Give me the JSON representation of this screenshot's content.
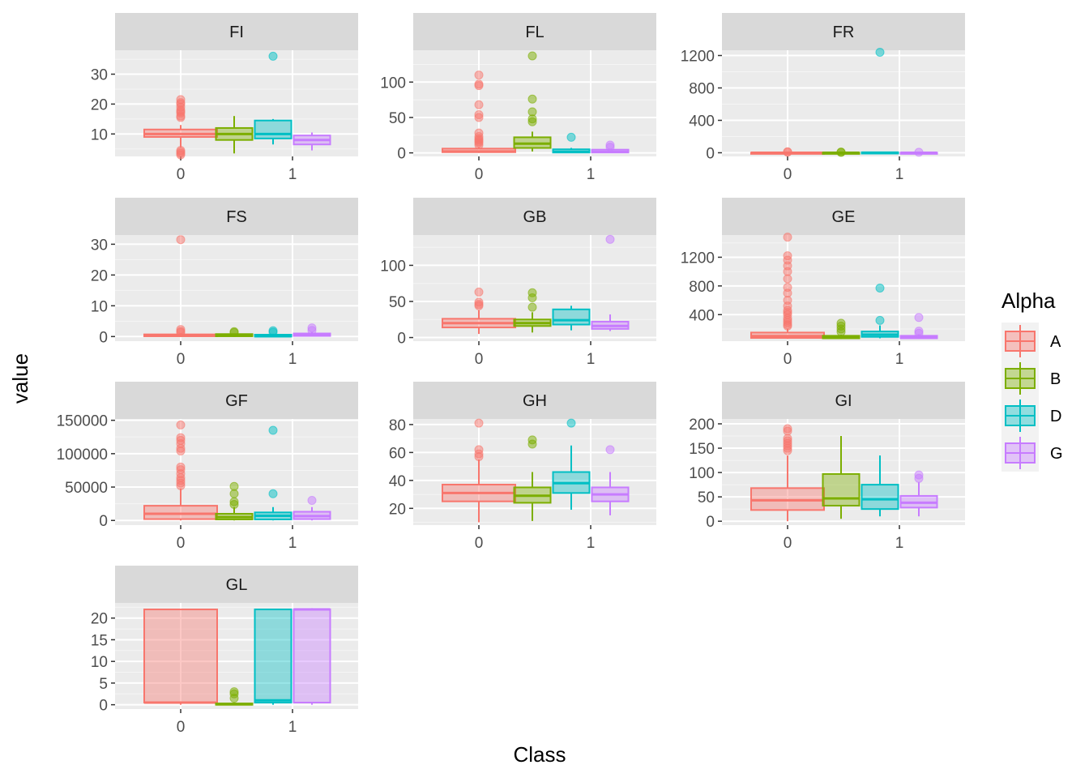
{
  "chart_data": {
    "type": "box",
    "xlabel": "Class",
    "ylabel": "value",
    "legend": {
      "title": "Alpha",
      "position": "right",
      "entries": [
        {
          "name": "A",
          "color": "#F8766D"
        },
        {
          "name": "B",
          "color": "#7CAE00"
        },
        {
          "name": "D",
          "color": "#00BFC4"
        },
        {
          "name": "G",
          "color": "#C77CFF"
        }
      ]
    },
    "grid": true,
    "x_categories": [
      "0",
      "1"
    ],
    "panels": [
      {
        "title": "FI",
        "ylim": [
          2.5,
          38
        ],
        "yticks": [
          10,
          20,
          30
        ],
        "ytick_labels": [
          "10",
          "20",
          "30"
        ],
        "boxes": [
          {
            "class": "0",
            "group": "A",
            "lower": 5.5,
            "q1": 9,
            "median": 10,
            "q3": 11.5,
            "upper": 13,
            "outliers": [
              3,
              3.5,
              4,
              4.5,
              15.5,
              16,
              17,
              17.5,
              18,
              19,
              20,
              20.5,
              21.5
            ]
          },
          {
            "class": "1",
            "group": "B",
            "lower": 3.5,
            "q1": 8,
            "median": 10,
            "q3": 12,
            "upper": 16,
            "outliers": []
          },
          {
            "class": "1",
            "group": "D",
            "lower": 6.5,
            "q1": 8.5,
            "median": 10,
            "q3": 14.5,
            "upper": 15,
            "outliers": [
              36
            ]
          },
          {
            "class": "1",
            "group": "G",
            "lower": 4.5,
            "q1": 6.5,
            "median": 8,
            "q3": 9.5,
            "upper": 10.5,
            "outliers": []
          }
        ]
      },
      {
        "title": "FL",
        "ylim": [
          -5,
          145
        ],
        "yticks": [
          0,
          50,
          100
        ],
        "ytick_labels": [
          "0",
          "50",
          "100"
        ],
        "boxes": [
          {
            "class": "0",
            "group": "A",
            "lower": 0,
            "q1": 1,
            "median": 2,
            "q3": 6,
            "upper": 8,
            "outliers": [
              11,
              14,
              16,
              18,
              20,
              23,
              28,
              50,
              54,
              68,
              95,
              97,
              110
            ]
          },
          {
            "class": "1",
            "group": "B",
            "lower": 2,
            "q1": 7,
            "median": 13,
            "q3": 22,
            "upper": 30,
            "outliers": [
              44,
              48,
              58,
              76,
              137
            ]
          },
          {
            "class": "1",
            "group": "D",
            "lower": 0,
            "q1": 0.5,
            "median": 1.5,
            "q3": 5,
            "upper": 7,
            "outliers": [
              22
            ]
          },
          {
            "class": "1",
            "group": "G",
            "lower": 0,
            "q1": 0.5,
            "median": 1.5,
            "q3": 4.5,
            "upper": 5,
            "outliers": [
              8,
              11
            ]
          }
        ]
      },
      {
        "title": "FR",
        "ylim": [
          -45,
          1265
        ],
        "yticks": [
          0,
          400,
          800,
          1200
        ],
        "ytick_labels": [
          "0",
          "400",
          "800",
          "1200"
        ],
        "boxes": [
          {
            "class": "0",
            "group": "A",
            "lower": 0,
            "q1": 0,
            "median": 0.5,
            "q3": 1,
            "upper": 2,
            "outliers": [
              8,
              12
            ]
          },
          {
            "class": "1",
            "group": "B",
            "lower": 0,
            "q1": 0,
            "median": 0.5,
            "q3": 1,
            "upper": 2,
            "outliers": [
              5,
              9
            ]
          },
          {
            "class": "1",
            "group": "D",
            "lower": 0,
            "q1": 0,
            "median": 1,
            "q3": 5,
            "upper": 8,
            "outliers": [
              1240
            ]
          },
          {
            "class": "1",
            "group": "G",
            "lower": 0,
            "q1": 0,
            "median": 0.5,
            "q3": 1,
            "upper": 2,
            "outliers": [
              6
            ]
          }
        ]
      },
      {
        "title": "FS",
        "ylim": [
          -1.5,
          33
        ],
        "yticks": [
          0,
          10,
          20,
          30
        ],
        "ytick_labels": [
          "0",
          "10",
          "20",
          "30"
        ],
        "boxes": [
          {
            "class": "0",
            "group": "A",
            "lower": 0,
            "q1": 0.1,
            "median": 0.3,
            "q3": 0.7,
            "upper": 1,
            "outliers": [
              1.3,
              1.7,
              2.3,
              31.5
            ]
          },
          {
            "class": "1",
            "group": "B",
            "lower": 0,
            "q1": 0.1,
            "median": 0.3,
            "q3": 0.8,
            "upper": 1,
            "outliers": [
              1.3,
              1.6
            ]
          },
          {
            "class": "1",
            "group": "D",
            "lower": 0,
            "q1": 0,
            "median": 0.1,
            "q3": 0.6,
            "upper": 0.9,
            "outliers": [
              1.4,
              1.9
            ]
          },
          {
            "class": "1",
            "group": "G",
            "lower": 0,
            "q1": 0.2,
            "median": 0.5,
            "q3": 1,
            "upper": 1.4,
            "outliers": [
              2,
              2.8
            ]
          }
        ]
      },
      {
        "title": "GB",
        "ylim": [
          -5,
          142
        ],
        "yticks": [
          0,
          50,
          100
        ],
        "ytick_labels": [
          "0",
          "50",
          "100"
        ],
        "boxes": [
          {
            "class": "0",
            "group": "A",
            "lower": 5,
            "q1": 14,
            "median": 20,
            "q3": 26,
            "upper": 38,
            "outliers": [
              44,
              46,
              49,
              63
            ]
          },
          {
            "class": "1",
            "group": "B",
            "lower": 7,
            "q1": 16,
            "median": 20,
            "q3": 25,
            "upper": 35,
            "outliers": [
              42,
              55,
              62
            ]
          },
          {
            "class": "1",
            "group": "D",
            "lower": 10,
            "q1": 18,
            "median": 24,
            "q3": 39,
            "upper": 44,
            "outliers": []
          },
          {
            "class": "1",
            "group": "G",
            "lower": 9,
            "q1": 12,
            "median": 16,
            "q3": 22,
            "upper": 32,
            "outliers": [
              136
            ]
          }
        ]
      },
      {
        "title": "GE",
        "ylim": [
          30,
          1510
        ],
        "yticks": [
          400,
          800,
          1200
        ],
        "ytick_labels": [
          "400",
          "800",
          "1200"
        ],
        "boxes": [
          {
            "class": "0",
            "group": "A",
            "lower": 60,
            "q1": 75,
            "median": 100,
            "q3": 150,
            "upper": 200,
            "outliers": [
              240,
              260,
              290,
              320,
              350,
              400,
              430,
              460,
              520,
              600,
              700,
              780,
              900,
              1000,
              1080,
              1160,
              1220,
              1480
            ]
          },
          {
            "class": "1",
            "group": "B",
            "lower": 60,
            "q1": 70,
            "median": 85,
            "q3": 105,
            "upper": 120,
            "outliers": [
              160,
              200,
              240,
              280
            ]
          },
          {
            "class": "1",
            "group": "D",
            "lower": 70,
            "q1": 90,
            "median": 120,
            "q3": 165,
            "upper": 250,
            "outliers": [
              320,
              770
            ]
          },
          {
            "class": "1",
            "group": "G",
            "lower": 60,
            "q1": 70,
            "median": 85,
            "q3": 105,
            "upper": 125,
            "outliers": [
              140,
              170,
              360
            ]
          }
        ]
      },
      {
        "title": "GF",
        "ylim": [
          -7000,
          152000
        ],
        "yticks": [
          0,
          50000,
          100000,
          150000
        ],
        "ytick_labels": [
          "0",
          "50000",
          "100000",
          "150000"
        ],
        "boxes": [
          {
            "class": "0",
            "group": "A",
            "lower": 0,
            "q1": 2000,
            "median": 10000,
            "q3": 22000,
            "upper": 48000,
            "outliers": [
              52000,
              56000,
              60000,
              64000,
              70000,
              76000,
              80000,
              104000,
              108000,
              115000,
              120000,
              124000,
              143000
            ]
          },
          {
            "class": "1",
            "group": "B",
            "lower": 0,
            "q1": 1500,
            "median": 5000,
            "q3": 10000,
            "upper": 20000,
            "outliers": [
              24000,
              28000,
              40000,
              51000
            ]
          },
          {
            "class": "1",
            "group": "D",
            "lower": 0,
            "q1": 1500,
            "median": 7000,
            "q3": 12000,
            "upper": 20000,
            "outliers": [
              40000,
              135000
            ]
          },
          {
            "class": "1",
            "group": "G",
            "lower": 0,
            "q1": 2000,
            "median": 6500,
            "q3": 13000,
            "upper": 20000,
            "outliers": [
              30000
            ]
          }
        ]
      },
      {
        "title": "GH",
        "ylim": [
          8,
          84
        ],
        "yticks": [
          20,
          40,
          60,
          80
        ],
        "ytick_labels": [
          "20",
          "40",
          "60",
          "80"
        ],
        "boxes": [
          {
            "class": "0",
            "group": "A",
            "lower": 10,
            "q1": 25,
            "median": 31,
            "q3": 37,
            "upper": 55,
            "outliers": [
              57,
              59,
              62,
              81
            ]
          },
          {
            "class": "1",
            "group": "B",
            "lower": 11,
            "q1": 24,
            "median": 29,
            "q3": 35,
            "upper": 46,
            "outliers": [
              66,
              69
            ]
          },
          {
            "class": "1",
            "group": "D",
            "lower": 19,
            "q1": 31,
            "median": 38,
            "q3": 46,
            "upper": 65,
            "outliers": [
              81
            ]
          },
          {
            "class": "1",
            "group": "G",
            "lower": 15,
            "q1": 25,
            "median": 30,
            "q3": 35,
            "upper": 46,
            "outliers": [
              62
            ]
          }
        ]
      },
      {
        "title": "GI",
        "ylim": [
          -8,
          210
        ],
        "yticks": [
          0,
          50,
          100,
          150,
          200
        ],
        "ytick_labels": [
          "0",
          "50",
          "100",
          "150",
          "200"
        ],
        "boxes": [
          {
            "class": "0",
            "group": "A",
            "lower": 0,
            "q1": 23,
            "median": 43,
            "q3": 68,
            "upper": 135,
            "outliers": [
              145,
              150,
              155,
              160,
              165,
              170,
              185,
              190
            ]
          },
          {
            "class": "1",
            "group": "B",
            "lower": 5,
            "q1": 32,
            "median": 47,
            "q3": 97,
            "upper": 175,
            "outliers": []
          },
          {
            "class": "1",
            "group": "D",
            "lower": 10,
            "q1": 25,
            "median": 45,
            "q3": 75,
            "upper": 135,
            "outliers": []
          },
          {
            "class": "1",
            "group": "G",
            "lower": 10,
            "q1": 28,
            "median": 38,
            "q3": 52,
            "upper": 80,
            "outliers": [
              88,
              95
            ]
          }
        ]
      },
      {
        "title": "GL",
        "ylim": [
          -1,
          23.5
        ],
        "yticks": [
          0,
          5,
          10,
          15,
          20
        ],
        "ytick_labels": [
          "0",
          "5",
          "10",
          "15",
          "20"
        ],
        "boxes": [
          {
            "class": "0",
            "group": "A",
            "lower": 0,
            "q1": 0.5,
            "median": 0.5,
            "q3": 22,
            "upper": 22,
            "outliers": []
          },
          {
            "class": "1",
            "group": "B",
            "lower": 0,
            "q1": 0,
            "median": 0.1,
            "q3": 0.3,
            "upper": 0.5,
            "outliers": [
              1.5,
              2.5,
              3
            ]
          },
          {
            "class": "1",
            "group": "D",
            "lower": 0,
            "q1": 0.5,
            "median": 1,
            "q3": 22,
            "upper": 22,
            "outliers": []
          },
          {
            "class": "1",
            "group": "G",
            "lower": 0,
            "q1": 0.5,
            "median": 22,
            "q3": 22,
            "upper": 22.3,
            "outliers": []
          }
        ]
      }
    ]
  }
}
